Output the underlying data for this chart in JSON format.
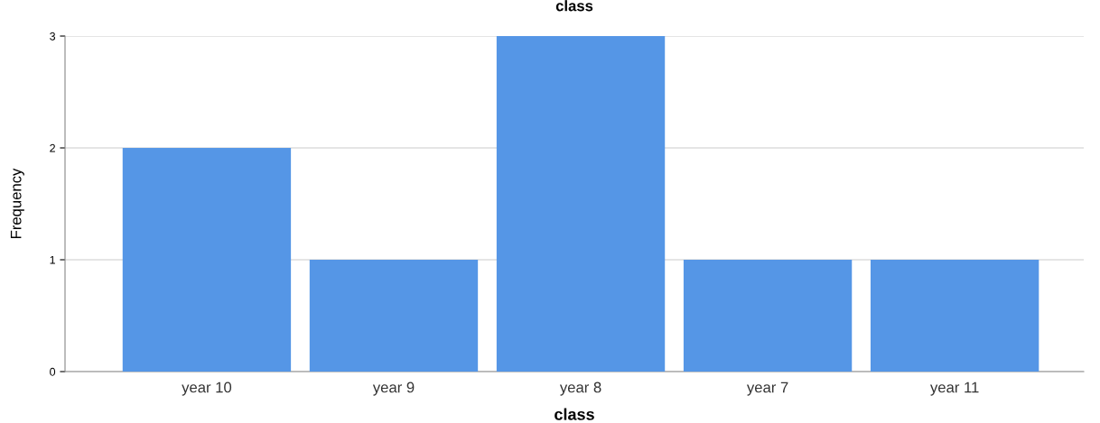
{
  "chart_data": {
    "type": "bar",
    "title": "class",
    "xlabel": "class",
    "ylabel": "Frequency",
    "categories": [
      "year 10",
      "year 9",
      "year 8",
      "year 7",
      "year 11"
    ],
    "values": [
      2,
      1,
      3,
      1,
      1
    ],
    "color": "#5596e6",
    "ylim": [
      0,
      3
    ],
    "yticks": [
      0,
      1,
      2,
      3
    ],
    "grid": "y",
    "legend": false
  }
}
